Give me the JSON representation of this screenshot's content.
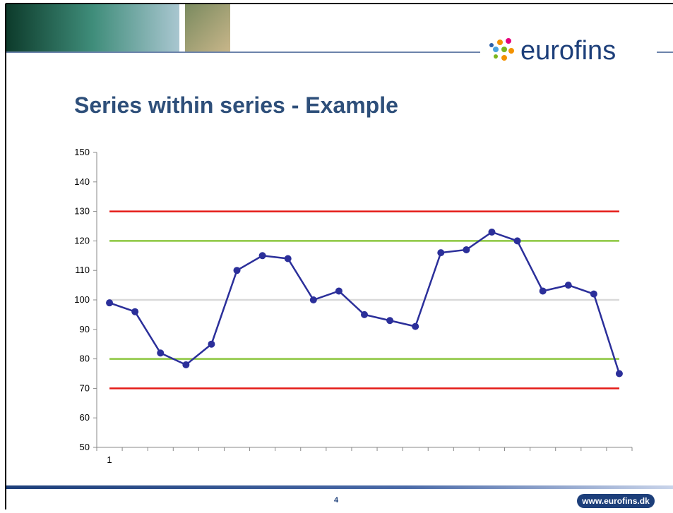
{
  "slide": {
    "logo": "eurofins",
    "page": "4",
    "url": "www.eurofins.dk"
  },
  "chart_data": {
    "type": "line",
    "title": "Series within series - Example",
    "categories": [
      "1",
      null,
      null,
      null,
      null,
      null,
      null,
      null,
      null,
      null,
      null,
      null,
      null,
      null,
      null,
      null,
      null,
      null,
      null,
      null,
      null
    ],
    "values": [
      99,
      96,
      82,
      78,
      85,
      110,
      115,
      114,
      100,
      103,
      95,
      93,
      91,
      116,
      117,
      123,
      120,
      103,
      105,
      102,
      75
    ],
    "color": "#2b2f9a",
    "ylim": [
      50,
      150
    ],
    "yticks": [
      50,
      60,
      70,
      80,
      90,
      100,
      110,
      120,
      130,
      140,
      150
    ],
    "reference_lines": [
      {
        "value": 130,
        "color": "#e41b17"
      },
      {
        "value": 120,
        "color": "#8cc63f"
      },
      {
        "value": 100,
        "color": "#d9d9d9"
      },
      {
        "value": 80,
        "color": "#8cc63f"
      },
      {
        "value": 70,
        "color": "#e41b17"
      }
    ]
  }
}
